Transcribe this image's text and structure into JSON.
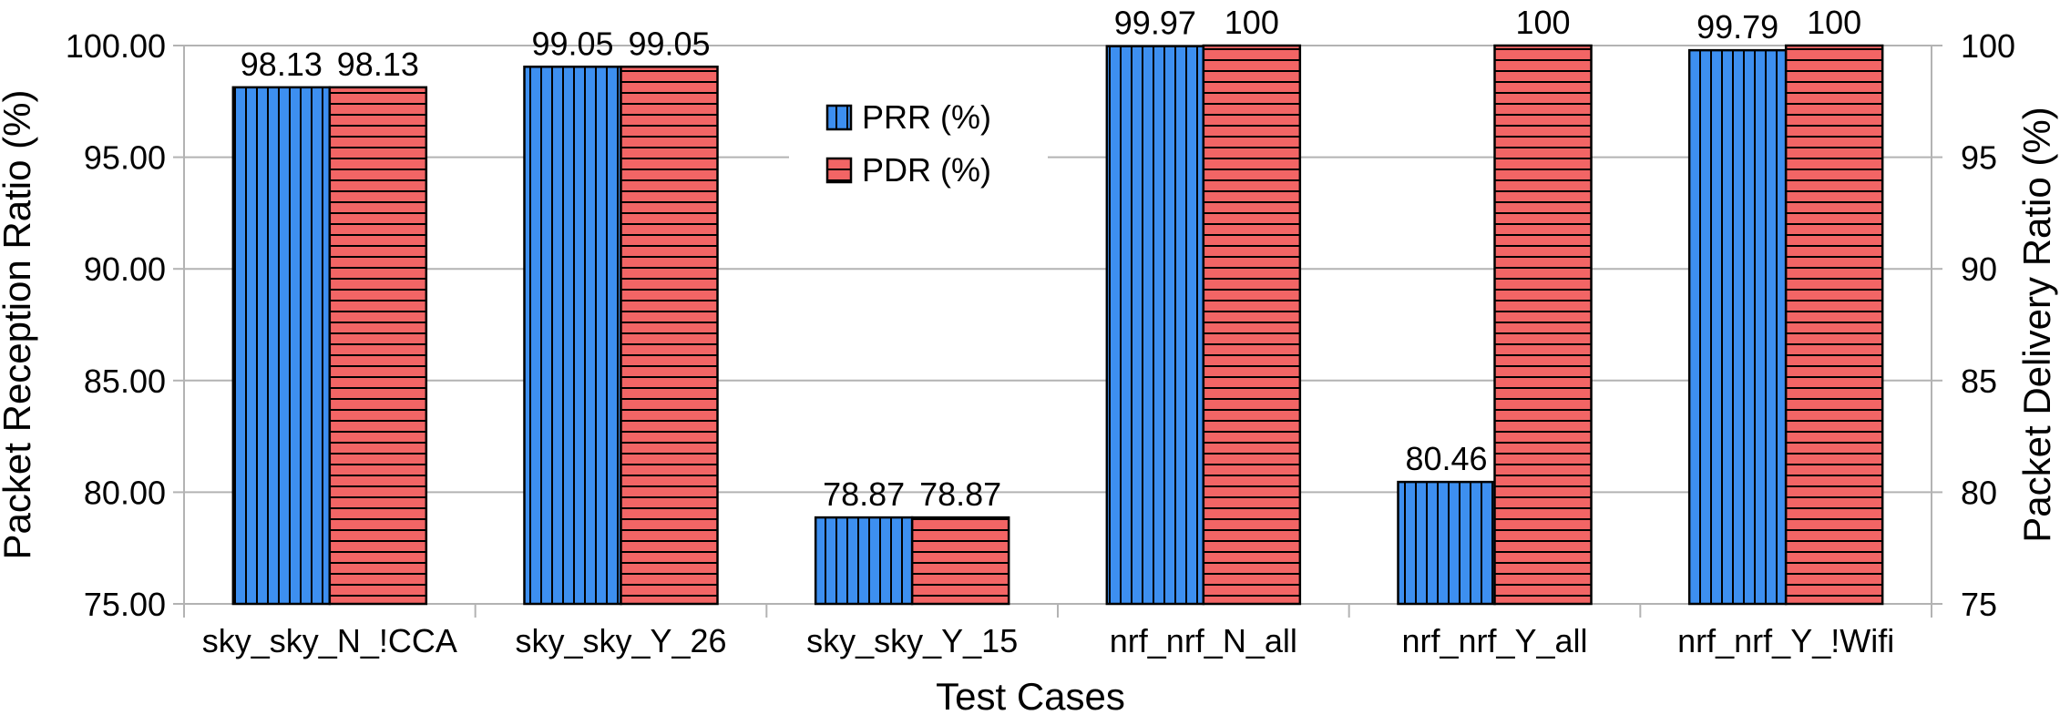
{
  "chart_data": {
    "type": "bar",
    "categories": [
      "sky_sky_N_!CCA",
      "sky_sky_Y_26",
      "sky_sky_Y_15",
      "nrf_nrf_N_all",
      "nrf_nrf_Y_all",
      "nrf_nrf_Y_!Wifi"
    ],
    "series": [
      {
        "name": "PRR (%)",
        "values": [
          98.13,
          99.05,
          78.87,
          99.97,
          80.46,
          99.79
        ],
        "labels": [
          "98.13",
          "99.05",
          "78.87",
          "99.97",
          "80.46",
          "99.79"
        ],
        "color": "#3d8ff0",
        "pattern": "vertical-lines",
        "axis": "left"
      },
      {
        "name": "PDR (%)",
        "values": [
          98.13,
          99.05,
          78.87,
          100,
          100,
          100
        ],
        "labels": [
          "98.13",
          "99.05",
          "78.87",
          "100",
          "100",
          "100"
        ],
        "color": "#f26565",
        "pattern": "horizontal-lines",
        "axis": "right"
      }
    ],
    "xlabel": "Test Cases",
    "ylabel": "Packet Reception Ratio (%)",
    "y2label": "Packet Delivery Ratio (%)",
    "ylim": [
      75,
      100
    ],
    "y2lim": [
      75,
      100
    ],
    "yticks": [
      "75.00",
      "80.00",
      "85.00",
      "90.00",
      "95.00",
      "100.00"
    ],
    "y2ticks": [
      "75",
      "80",
      "85",
      "90",
      "95",
      "100"
    ],
    "grid": true,
    "legend": "top-center"
  }
}
